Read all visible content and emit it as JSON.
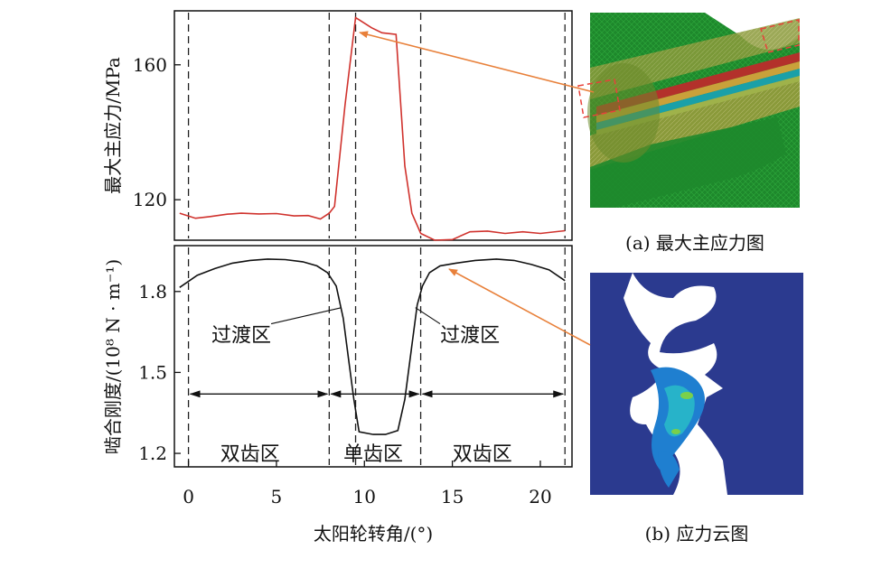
{
  "chart_data": [
    {
      "type": "line",
      "ylabel": "最大主应力/MPa",
      "ylim": [
        108,
        176
      ],
      "yticks": [
        120,
        160
      ],
      "xlim": [
        -0.8,
        21.8
      ],
      "grid": false,
      "series": [
        {
          "color": "#d0322d",
          "x": [
            -0.5,
            0.4,
            1.2,
            2.2,
            3.0,
            4.0,
            5.0,
            6.0,
            6.8,
            7.5,
            8.0,
            8.3,
            8.9,
            9.5,
            9.8,
            10.4,
            11.0,
            11.8,
            12.3,
            12.7,
            13.2,
            14.0,
            15.0,
            16.0,
            17.0,
            18.0,
            19.0,
            20.0,
            21.4
          ],
          "values": [
            116,
            114.5,
            115,
            115.7,
            116,
            115.8,
            115.9,
            115.2,
            115.3,
            114.3,
            116,
            118,
            148,
            174,
            173,
            171,
            169.5,
            169,
            130,
            116,
            110,
            108,
            108.2,
            110.5,
            110.7,
            110,
            110.5,
            110,
            110.8
          ]
        }
      ]
    },
    {
      "type": "line",
      "ylabel": "啮合刚度/(10⁸ N · m⁻¹)",
      "xlabel": "太阳轮转角/(°)",
      "ylim": [
        1.15,
        1.97
      ],
      "yticks": [
        1.2,
        1.5,
        1.8
      ],
      "xlim": [
        -0.8,
        21.8
      ],
      "xticks": [
        0,
        5,
        10,
        15,
        20
      ],
      "grid": false,
      "series": [
        {
          "color": "#111111",
          "x": [
            -0.5,
            0.5,
            1.5,
            2.5,
            3.5,
            4.5,
            5.5,
            6.5,
            7.3,
            7.9,
            8.4,
            8.8,
            9.1,
            9.4,
            9.7,
            10.5,
            11.2,
            11.9,
            12.3,
            12.7,
            13.0,
            13.3,
            13.7,
            14.3,
            15.2,
            16.3,
            17.5,
            18.5,
            19.5,
            20.5,
            21.4
          ],
          "values": [
            1.815,
            1.86,
            1.885,
            1.905,
            1.915,
            1.92,
            1.918,
            1.91,
            1.895,
            1.87,
            1.82,
            1.7,
            1.55,
            1.4,
            1.28,
            1.27,
            1.27,
            1.285,
            1.4,
            1.6,
            1.75,
            1.82,
            1.87,
            1.895,
            1.905,
            1.915,
            1.92,
            1.915,
            1.9,
            1.88,
            1.84
          ]
        }
      ],
      "annotations": [
        {
          "text": "过渡区",
          "x": 3.0,
          "y": 1.64
        },
        {
          "text": "过渡区",
          "x": 16.0,
          "y": 1.64
        },
        {
          "text": "双齿区",
          "x": 3.5,
          "y": 1.2
        },
        {
          "text": "单齿区",
          "x": 10.5,
          "y": 1.2
        },
        {
          "text": "双齿区",
          "x": 16.7,
          "y": 1.2
        }
      ],
      "region_arrows_y": 1.42,
      "boundaries_x": [
        0,
        8.0,
        9.5,
        13.2,
        21.4
      ]
    }
  ],
  "captions": {
    "a": "(a) 最大主应力图",
    "b": "(b) 应力云图"
  },
  "colors": {
    "stress_line": "#d0322d",
    "arrow": "#e8803a",
    "mesh_green": "#1f8a2e",
    "contour_blue": "#2b3a8f"
  }
}
